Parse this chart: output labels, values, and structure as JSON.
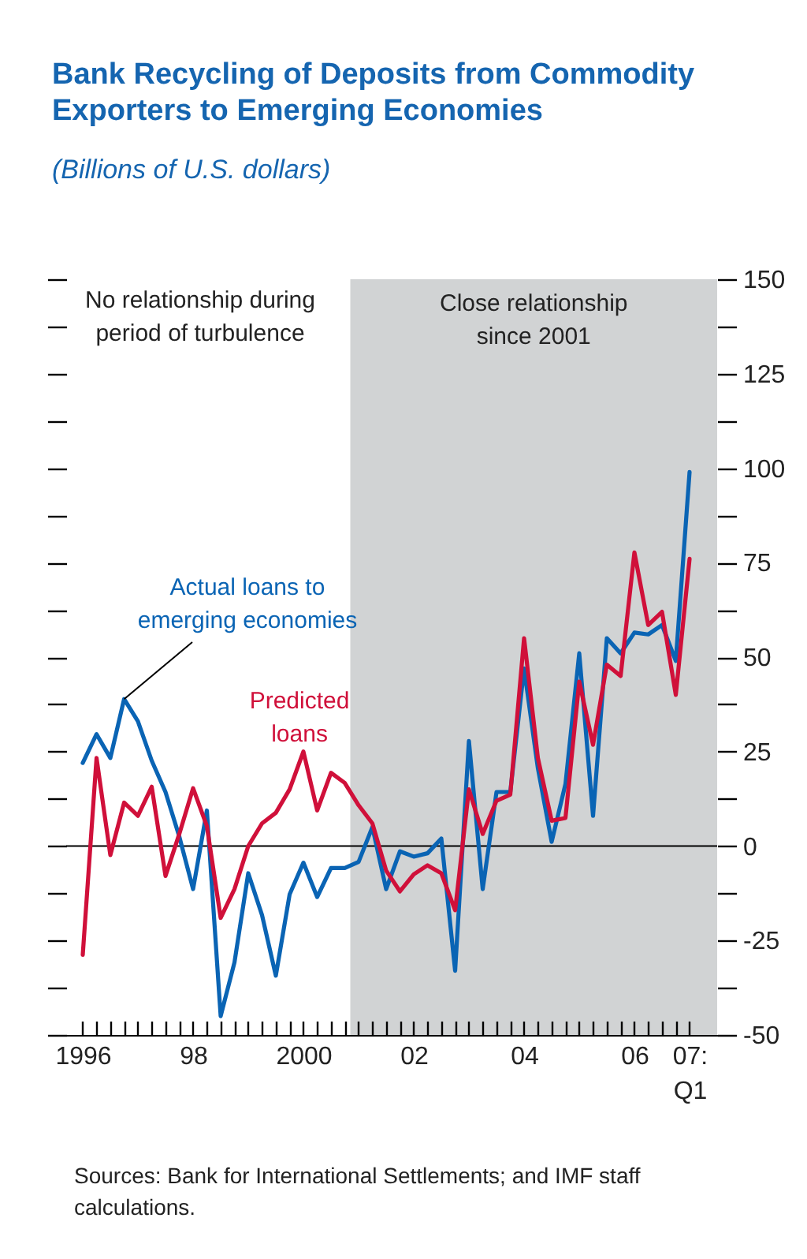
{
  "chart_data": {
    "type": "line",
    "title": "Bank Recycling of Deposits from Commodity Exporters to Emerging Economies",
    "subtitle": "(Billions of U.S. dollars)",
    "x": [
      1996,
      1996.25,
      1996.5,
      1996.75,
      1997,
      1997.25,
      1997.5,
      1997.75,
      1998,
      1998.25,
      1998.5,
      1998.75,
      1999,
      1999.25,
      1999.5,
      1999.75,
      2000,
      2000.25,
      2000.5,
      2000.75,
      2001,
      2001.25,
      2001.5,
      2001.75,
      2002,
      2002.25,
      2002.5,
      2002.75,
      2003,
      2003.25,
      2003.5,
      2003.75,
      2004,
      2004.25,
      2004.5,
      2004.75,
      2005,
      2005.25,
      2005.5,
      2005.75,
      2006,
      2006.25,
      2006.5,
      2006.75,
      2007
    ],
    "series": [
      {
        "name": "Actual loans to emerging economies",
        "color": "#0a64b4",
        "values": [
          22,
          29.6,
          23.3,
          38.9,
          33,
          22.6,
          14.3,
          2.5,
          -11.4,
          9.4,
          -45,
          -30.8,
          -7.2,
          -18.3,
          -34.3,
          -12.8,
          -4.4,
          -13.5,
          -5.8,
          -5.8,
          -4.2,
          5,
          -11.4,
          -1.4,
          -2.8,
          -1.9,
          2,
          -33,
          27.8,
          -11.4,
          14.3,
          14.3,
          47,
          20.6,
          1.1,
          16.4,
          51,
          8,
          55,
          51,
          56.5,
          56,
          58.5,
          49,
          99
        ]
      },
      {
        "name": "Predicted loans",
        "color": "#d0103a",
        "values": [
          -28.8,
          23.3,
          -2.4,
          11.5,
          8,
          15.7,
          -7.9,
          3.2,
          15.3,
          5.3,
          -19,
          -11.4,
          0,
          6,
          8.8,
          15,
          25,
          9.4,
          19.4,
          16.7,
          10.8,
          6,
          -6.5,
          -12,
          -7.5,
          -5.1,
          -7.2,
          -17,
          15,
          3.2,
          12,
          13.6,
          55,
          23.3,
          6.7,
          7.4,
          43.5,
          26.8,
          48,
          45,
          77.7,
          58.5,
          62,
          40,
          76
        ]
      }
    ],
    "xlim": [
      1995.7,
      2007.5
    ],
    "xticks": [
      {
        "value": 1996,
        "label": "1996"
      },
      {
        "value": 1996.25,
        "label": null
      },
      {
        "value": 1996.5,
        "label": null
      },
      {
        "value": 1996.75,
        "label": null
      },
      {
        "value": 1997,
        "label": null
      },
      {
        "value": 1997.25,
        "label": null
      },
      {
        "value": 1997.5,
        "label": null
      },
      {
        "value": 1997.75,
        "label": null
      },
      {
        "value": 1998,
        "label": "98"
      },
      {
        "value": 1998.25,
        "label": null
      },
      {
        "value": 1998.5,
        "label": null
      },
      {
        "value": 1998.75,
        "label": null
      },
      {
        "value": 1999,
        "label": null
      },
      {
        "value": 1999.25,
        "label": null
      },
      {
        "value": 1999.5,
        "label": null
      },
      {
        "value": 1999.75,
        "label": null
      },
      {
        "value": 2000,
        "label": "2000"
      },
      {
        "value": 2000.25,
        "label": null
      },
      {
        "value": 2000.5,
        "label": null
      },
      {
        "value": 2000.75,
        "label": null
      },
      {
        "value": 2001,
        "label": null
      },
      {
        "value": 2001.25,
        "label": null
      },
      {
        "value": 2001.5,
        "label": null
      },
      {
        "value": 2001.75,
        "label": null
      },
      {
        "value": 2002,
        "label": "02"
      },
      {
        "value": 2002.25,
        "label": null
      },
      {
        "value": 2002.5,
        "label": null
      },
      {
        "value": 2002.75,
        "label": null
      },
      {
        "value": 2003,
        "label": null
      },
      {
        "value": 2003.25,
        "label": null
      },
      {
        "value": 2003.5,
        "label": null
      },
      {
        "value": 2003.75,
        "label": null
      },
      {
        "value": 2004,
        "label": "04"
      },
      {
        "value": 2004.25,
        "label": null
      },
      {
        "value": 2004.5,
        "label": null
      },
      {
        "value": 2004.75,
        "label": null
      },
      {
        "value": 2005,
        "label": null
      },
      {
        "value": 2005.25,
        "label": null
      },
      {
        "value": 2005.5,
        "label": null
      },
      {
        "value": 2005.75,
        "label": null
      },
      {
        "value": 2006,
        "label": "06"
      },
      {
        "value": 2006.25,
        "label": null
      },
      {
        "value": 2006.5,
        "label": null
      },
      {
        "value": 2006.75,
        "label": null
      },
      {
        "value": 2007,
        "label": "07: Q1"
      }
    ],
    "ylim": [
      -50,
      150
    ],
    "yticks": [
      -50,
      {
        "value": -37.5,
        "label": null
      },
      -25,
      {
        "value": -12.5,
        "label": null
      },
      0,
      {
        "value": 12.5,
        "label": null
      },
      25,
      {
        "value": 37.5,
        "label": null
      },
      50,
      {
        "value": 62.5,
        "label": null
      },
      75,
      {
        "value": 87.5,
        "label": null
      },
      100,
      {
        "value": 112.5,
        "label": null
      },
      125,
      {
        "value": 137.5,
        "label": null
      },
      150
    ],
    "ref_lines": [
      {
        "axis": "y",
        "value": 0,
        "color": "#000000"
      }
    ],
    "bands": [
      {
        "axis": "x",
        "from": 2000.85,
        "to": 2007.5,
        "label": "Close relationship since 2001",
        "color": "#d1d3d4"
      }
    ],
    "annotations": [
      "No relationship during period of turbulence",
      "Sources: Bank for International Settlements; and IMF staff calculations."
    ],
    "grid": false,
    "legend": false,
    "marker": "none",
    "line_style": "solid"
  }
}
